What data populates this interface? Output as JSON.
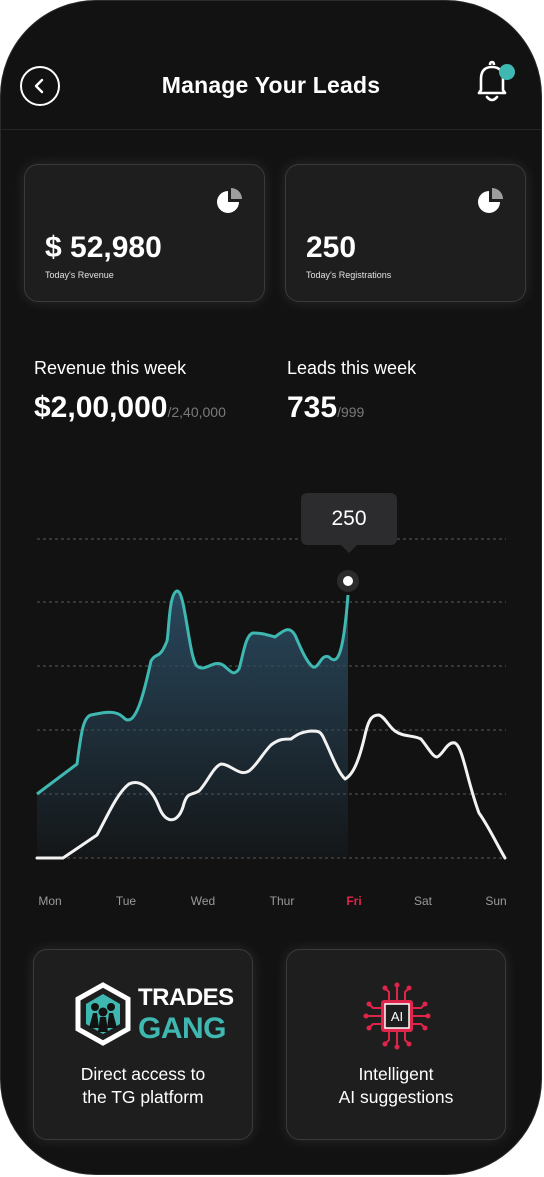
{
  "header": {
    "title": "Manage Your Leads"
  },
  "stats": [
    {
      "value": "$ 52,980",
      "label": "Today's Revenue"
    },
    {
      "value": "250",
      "label": "Today's Registrations"
    }
  ],
  "weekly": {
    "revenue": {
      "label": "Revenue this week",
      "value": "$2,00,000",
      "target": "/2,40,000"
    },
    "leads": {
      "label": "Leads this week",
      "value": "735",
      "target": "/999"
    }
  },
  "chart_data": {
    "type": "line",
    "categories": [
      "Mon",
      "Tue",
      "Wed",
      "Thur",
      "Fri",
      "Sat",
      "Sun"
    ],
    "highlighted_category": "Fri",
    "tooltip": "250",
    "grid": "horizontal dashed",
    "colors": {
      "series_1": "#3fb8b1",
      "series_2": "#f2f2f2",
      "highlight": "#e0254a"
    }
  },
  "features": [
    {
      "logo_line1": "TRADES",
      "logo_line2": "GANG",
      "line1": "Direct access to",
      "line2": "the TG platform"
    },
    {
      "chip_label": "AI",
      "line1": "Intelligent",
      "line2": "AI suggestions"
    }
  ],
  "icons": {
    "back": "chevron-left-icon",
    "notification": "bell-icon",
    "stat": "pie-chart-icon"
  }
}
